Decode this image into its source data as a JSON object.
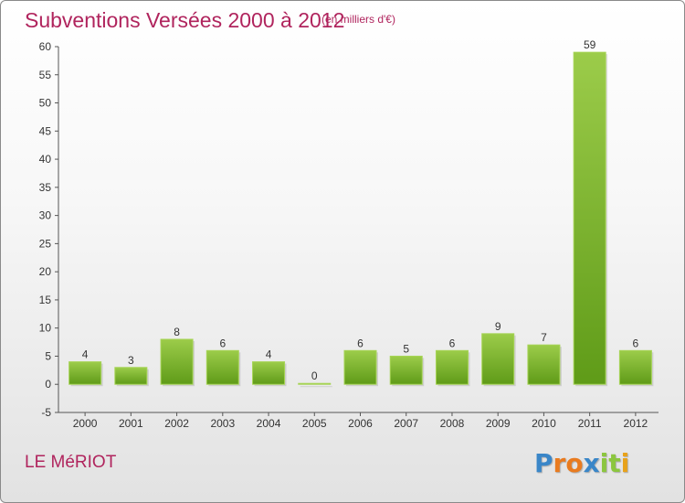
{
  "title": "Subventions Versées 2000 à 2012",
  "subtitle": "(en milliers d'€)",
  "commune": "LE MéRIOT",
  "brand": {
    "letters": [
      "P",
      "r",
      "o",
      "x",
      "i",
      "t",
      "i"
    ],
    "colors": [
      "#3a86c8",
      "#e97b1f",
      "#e97b1f",
      "#3a86c8",
      "#8cc63f",
      "#8cc63f",
      "#e8a21b"
    ]
  },
  "chart_data": {
    "type": "bar",
    "categories": [
      "2000",
      "2001",
      "2002",
      "2003",
      "2004",
      "2005",
      "2006",
      "2007",
      "2008",
      "2009",
      "2010",
      "2011",
      "2012"
    ],
    "values": [
      4,
      3,
      8,
      6,
      4,
      0,
      6,
      5,
      6,
      9,
      7,
      59,
      6
    ],
    "ylim": [
      -5,
      60
    ],
    "yticks": [
      -5,
      0,
      5,
      10,
      15,
      20,
      25,
      30,
      35,
      40,
      45,
      50,
      55,
      60
    ],
    "grid": false,
    "bar_color": "#7fba2e",
    "bar_color_dark": "#5e9a1a",
    "bar_color_light": "#a6d455"
  }
}
